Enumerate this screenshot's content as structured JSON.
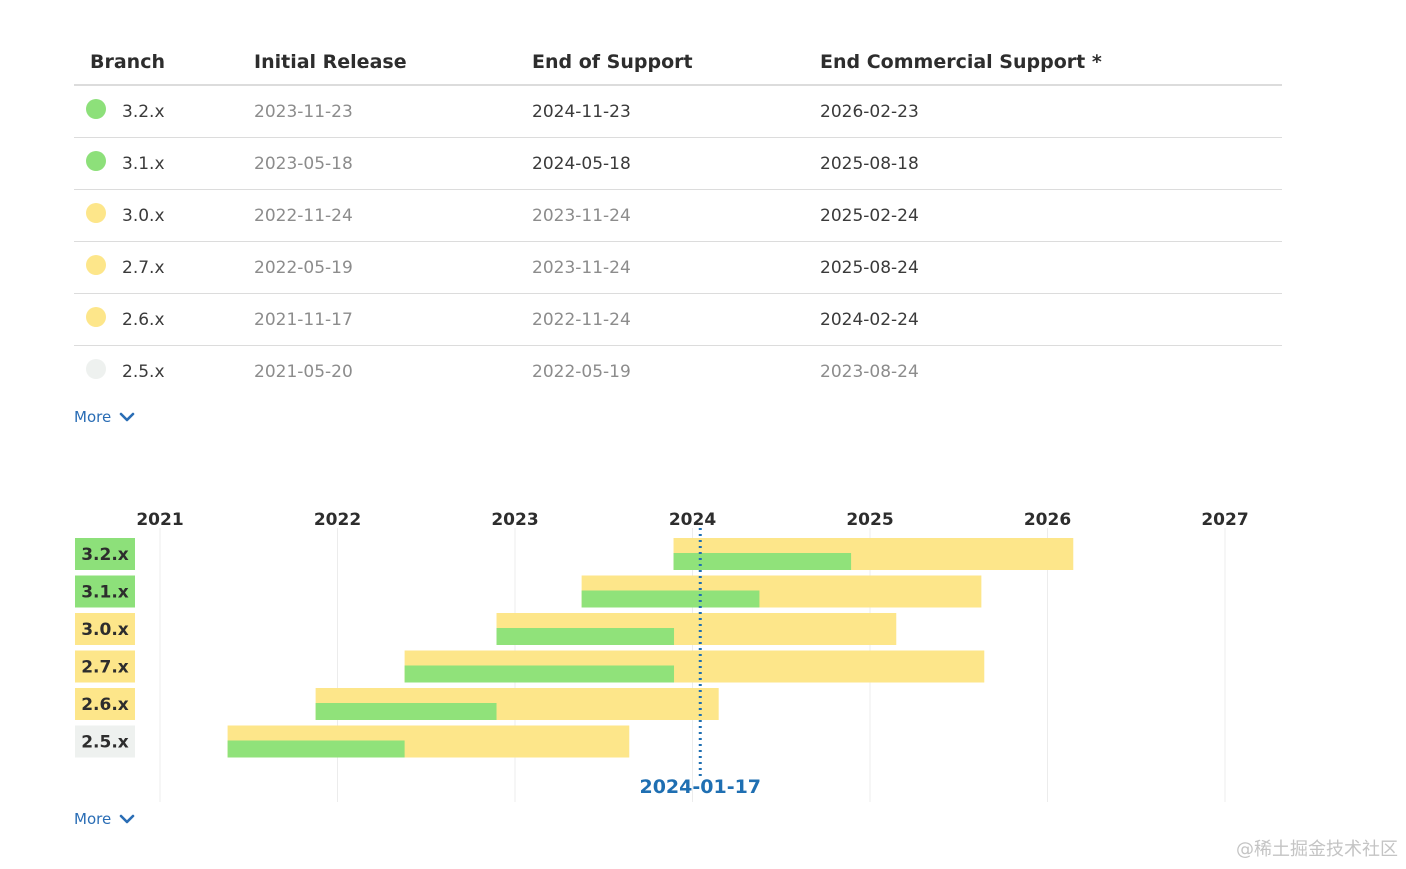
{
  "table": {
    "headers": [
      "Branch",
      "Initial Release",
      "End of Support",
      "End Commercial Support *"
    ],
    "rows": [
      {
        "branch": "3.2.x",
        "status_color": "#8de07a",
        "initial": "2023-11-23",
        "end_support": "2024-11-23",
        "end_commercial": "2026-02-23",
        "muted": [
          true,
          false,
          false
        ]
      },
      {
        "branch": "3.1.x",
        "status_color": "#8de07a",
        "initial": "2023-05-18",
        "end_support": "2024-05-18",
        "end_commercial": "2025-08-18",
        "muted": [
          true,
          false,
          false
        ]
      },
      {
        "branch": "3.0.x",
        "status_color": "#fde68a",
        "initial": "2022-11-24",
        "end_support": "2023-11-24",
        "end_commercial": "2025-02-24",
        "muted": [
          true,
          true,
          false
        ]
      },
      {
        "branch": "2.7.x",
        "status_color": "#fde68a",
        "initial": "2022-05-19",
        "end_support": "2023-11-24",
        "end_commercial": "2025-08-24",
        "muted": [
          true,
          true,
          false
        ]
      },
      {
        "branch": "2.6.x",
        "status_color": "#fde68a",
        "initial": "2021-11-17",
        "end_support": "2022-11-24",
        "end_commercial": "2024-02-24",
        "muted": [
          true,
          true,
          false
        ]
      },
      {
        "branch": "2.5.x",
        "status_color": "#eef1ef",
        "initial": "2021-05-20",
        "end_support": "2022-05-19",
        "end_commercial": "2023-08-24",
        "muted": [
          true,
          true,
          true
        ]
      }
    ],
    "more_label": "More"
  },
  "chart_data": {
    "type": "gantt",
    "x_ticks": [
      "2021",
      "2022",
      "2023",
      "2024",
      "2025",
      "2026",
      "2027"
    ],
    "xlim": [
      "2020-07-01",
      "2027-01-01"
    ],
    "today_label": "2024-01-17",
    "today": "2024-01-17",
    "series_legend": {
      "oss_color": "#90e27a",
      "commercial_color": "#fde68a"
    },
    "rows": [
      {
        "branch": "3.2.x",
        "label_color": "#8de07a",
        "start": "2023-11-23",
        "oss_end": "2024-11-23",
        "commercial_end": "2026-02-23"
      },
      {
        "branch": "3.1.x",
        "label_color": "#8de07a",
        "start": "2023-05-18",
        "oss_end": "2024-05-18",
        "commercial_end": "2025-08-18"
      },
      {
        "branch": "3.0.x",
        "label_color": "#fde68a",
        "start": "2022-11-24",
        "oss_end": "2023-11-24",
        "commercial_end": "2025-02-24"
      },
      {
        "branch": "2.7.x",
        "label_color": "#fde68a",
        "start": "2022-05-19",
        "oss_end": "2023-11-24",
        "commercial_end": "2025-08-24"
      },
      {
        "branch": "2.6.x",
        "label_color": "#fde68a",
        "start": "2021-11-17",
        "oss_end": "2022-11-24",
        "commercial_end": "2024-02-24"
      },
      {
        "branch": "2.5.x",
        "label_color": "#eef1ef",
        "start": "2021-05-20",
        "oss_end": "2022-05-19",
        "commercial_end": "2023-08-24"
      }
    ],
    "more_label": "More"
  },
  "colors": {
    "link": "#2a6db5",
    "today_line": "#1f6fb2"
  },
  "watermark": "@稀土掘金技术社区"
}
